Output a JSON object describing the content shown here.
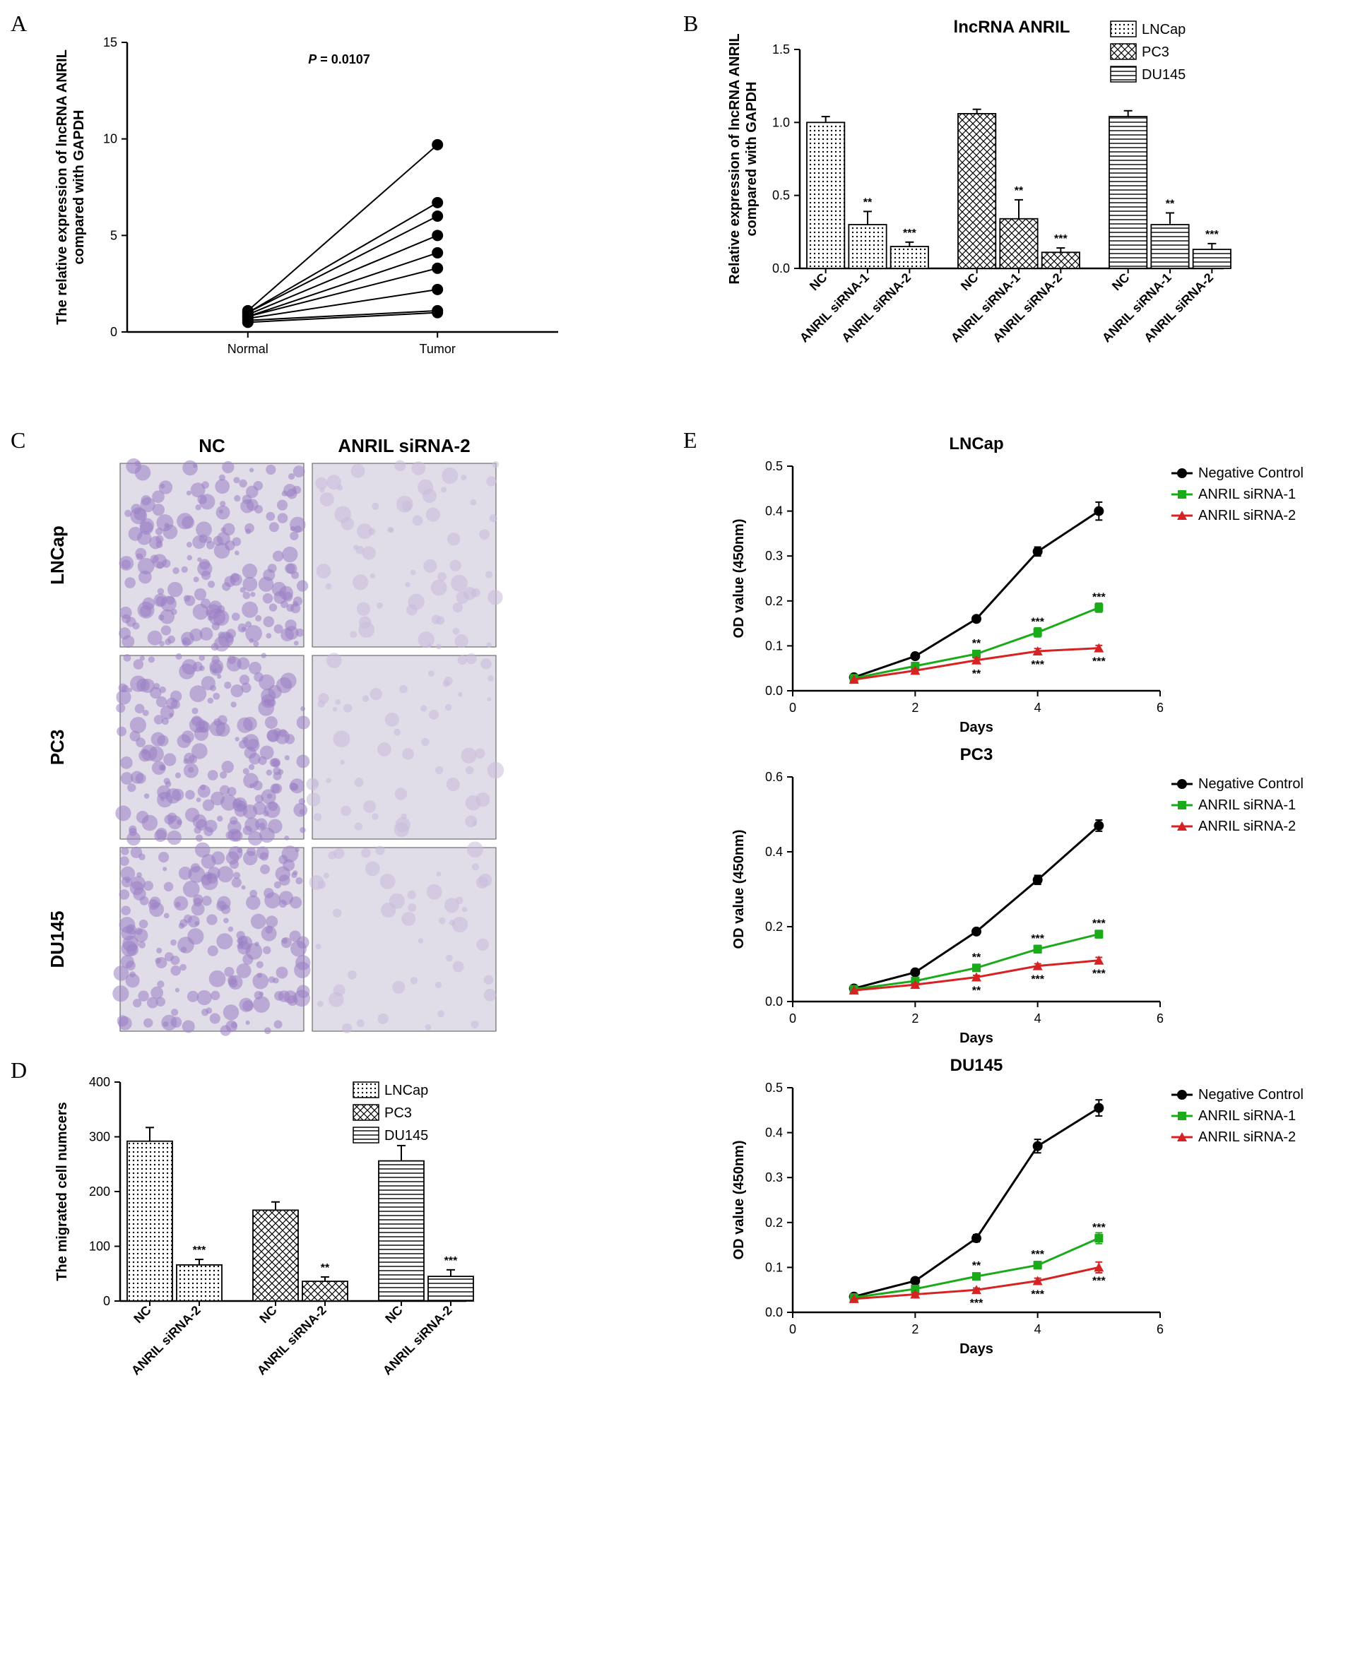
{
  "panelA": {
    "label": "A",
    "type": "paired-scatter",
    "title_p": "P = 0.0107",
    "ylabel": "The relative expression of lncRNA ANRIL\ncompared with GAPDH",
    "x_categories": [
      "Normal",
      "Tumor"
    ],
    "ylim": [
      0,
      15
    ],
    "yticks": [
      0,
      5,
      10,
      15
    ],
    "lines": [
      {
        "normal": 0.5,
        "tumor": 1.0
      },
      {
        "normal": 0.6,
        "tumor": 1.1
      },
      {
        "normal": 0.7,
        "tumor": 2.2
      },
      {
        "normal": 0.8,
        "tumor": 3.3
      },
      {
        "normal": 0.8,
        "tumor": 4.1
      },
      {
        "normal": 0.9,
        "tumor": 5.0
      },
      {
        "normal": 1.0,
        "tumor": 6.0
      },
      {
        "normal": 1.0,
        "tumor": 6.7
      },
      {
        "normal": 1.1,
        "tumor": 9.7
      }
    ],
    "marker_color": "#000000",
    "marker_size": 8,
    "line_color": "#000000",
    "background_color": "#ffffff",
    "title_fontsize": 22,
    "label_fontsize": 20
  },
  "panelB": {
    "label": "B",
    "type": "bar",
    "title": "lncRNA ANRIL",
    "ylabel": "Relative expression of lncRNA ANRIL\ncompared with GAPDH",
    "ylim": [
      0,
      1.5
    ],
    "yticks": [
      0.0,
      0.5,
      1.0,
      1.5
    ],
    "legend": [
      {
        "name": "LNCap",
        "pattern": "dots"
      },
      {
        "name": "PC3",
        "pattern": "crosshatch"
      },
      {
        "name": "DU145",
        "pattern": "hlines"
      }
    ],
    "groups": [
      {
        "pattern": "dots",
        "bars": [
          {
            "label": "NC",
            "value": 1.0,
            "err": 0.04,
            "sig": ""
          },
          {
            "label": "ANRIL siRNA-1",
            "value": 0.3,
            "err": 0.09,
            "sig": "**"
          },
          {
            "label": "ANRIL siRNA-2",
            "value": 0.15,
            "err": 0.03,
            "sig": "***"
          }
        ]
      },
      {
        "pattern": "crosshatch",
        "bars": [
          {
            "label": "NC",
            "value": 1.06,
            "err": 0.03,
            "sig": ""
          },
          {
            "label": "ANRIL siRNA-1",
            "value": 0.34,
            "err": 0.13,
            "sig": "**"
          },
          {
            "label": "ANRIL siRNA-2",
            "value": 0.11,
            "err": 0.03,
            "sig": "***"
          }
        ]
      },
      {
        "pattern": "hlines",
        "bars": [
          {
            "label": "NC",
            "value": 1.04,
            "err": 0.04,
            "sig": ""
          },
          {
            "label": "ANRIL siRNA-1",
            "value": 0.3,
            "err": 0.08,
            "sig": "**"
          },
          {
            "label": "ANRIL siRNA-2",
            "value": 0.13,
            "err": 0.04,
            "sig": "***"
          }
        ]
      }
    ],
    "bar_fill": "#ffffff",
    "bar_stroke": "#000000",
    "background_color": "#ffffff",
    "label_fontsize": 20,
    "title_fontsize": 24
  },
  "panelC": {
    "label": "C",
    "type": "image-grid",
    "col_headers": [
      "NC",
      "ANRIL siRNA-2"
    ],
    "row_headers": [
      "LNCap",
      "PC3",
      "DU145"
    ],
    "cell_color_dense": "#9a7fc4",
    "cell_color_sparse": "#c9bcdb",
    "cell_bg": "#e0dce8",
    "cells": [
      [
        {
          "density": 0.75
        },
        {
          "density": 0.25
        }
      ],
      [
        {
          "density": 0.8
        },
        {
          "density": 0.2
        }
      ],
      [
        {
          "density": 0.7
        },
        {
          "density": 0.18
        }
      ]
    ]
  },
  "panelD": {
    "label": "D",
    "type": "bar",
    "ylabel": "The migrated cell numcers",
    "ylim": [
      0,
      400
    ],
    "yticks": [
      0,
      100,
      200,
      300,
      400
    ],
    "legend": [
      {
        "name": "LNCap",
        "pattern": "dots"
      },
      {
        "name": "PC3",
        "pattern": "crosshatch"
      },
      {
        "name": "DU145",
        "pattern": "hlines"
      }
    ],
    "groups": [
      {
        "pattern": "dots",
        "bars": [
          {
            "label": "NC",
            "value": 292,
            "err": 25,
            "sig": ""
          },
          {
            "label": "ANRIL siRNA-2",
            "value": 66,
            "err": 10,
            "sig": "***"
          }
        ]
      },
      {
        "pattern": "crosshatch",
        "bars": [
          {
            "label": "NC",
            "value": 166,
            "err": 15,
            "sig": ""
          },
          {
            "label": "ANRIL siRNA-2",
            "value": 36,
            "err": 8,
            "sig": "**"
          }
        ]
      },
      {
        "pattern": "hlines",
        "bars": [
          {
            "label": "NC",
            "value": 256,
            "err": 28,
            "sig": ""
          },
          {
            "label": "ANRIL siRNA-2",
            "value": 45,
            "err": 12,
            "sig": "***"
          }
        ]
      }
    ],
    "bar_fill": "#ffffff",
    "bar_stroke": "#000000",
    "background_color": "#ffffff",
    "label_fontsize": 20
  },
  "panelE": {
    "label": "E",
    "type": "line-multi",
    "xlabel": "Days",
    "ylabel": "OD value (450nm)",
    "xlim": [
      0,
      6
    ],
    "xticks": [
      0,
      2,
      4,
      6
    ],
    "legend": [
      {
        "name": "Negative Control",
        "color": "#000000",
        "marker": "circle"
      },
      {
        "name": "ANRIL siRNA-1",
        "color": "#1aaa1a",
        "marker": "square"
      },
      {
        "name": "ANRIL siRNA-2",
        "color": "#d62222",
        "marker": "triangle"
      }
    ],
    "charts": [
      {
        "title": "LNCap",
        "ylim": [
          0,
          0.5
        ],
        "yticks": [
          0.0,
          0.1,
          0.2,
          0.3,
          0.4,
          0.5
        ],
        "series": [
          {
            "key": "Negative Control",
            "points": [
              [
                1,
                0.03
              ],
              [
                2,
                0.077
              ],
              [
                3,
                0.16
              ],
              [
                4,
                0.31
              ],
              [
                5,
                0.4
              ]
            ],
            "err": [
              0,
              0.005,
              0.005,
              0.01,
              0.02
            ]
          },
          {
            "key": "ANRIL siRNA-1",
            "points": [
              [
                1,
                0.028
              ],
              [
                2,
                0.055
              ],
              [
                3,
                0.082
              ],
              [
                4,
                0.13
              ],
              [
                5,
                0.185
              ]
            ],
            "err": [
              0,
              0.004,
              0.006,
              0.01,
              0.01
            ],
            "sig": [
              "",
              "",
              "**",
              "***",
              "***"
            ]
          },
          {
            "key": "ANRIL siRNA-2",
            "points": [
              [
                1,
                0.025
              ],
              [
                2,
                0.045
              ],
              [
                3,
                0.068
              ],
              [
                4,
                0.088
              ],
              [
                5,
                0.095
              ]
            ],
            "err": [
              0,
              0.003,
              0.005,
              0.006,
              0.006
            ],
            "sig": [
              "",
              "",
              "**",
              "***",
              "***"
            ]
          }
        ]
      },
      {
        "title": "PC3",
        "ylim": [
          0,
          0.6
        ],
        "yticks": [
          0.0,
          0.2,
          0.4,
          0.6
        ],
        "series": [
          {
            "key": "Negative Control",
            "points": [
              [
                1,
                0.035
              ],
              [
                2,
                0.078
              ],
              [
                3,
                0.187
              ],
              [
                4,
                0.325
              ],
              [
                5,
                0.47
              ]
            ],
            "err": [
              0,
              0.005,
              0.008,
              0.012,
              0.015
            ]
          },
          {
            "key": "ANRIL siRNA-1",
            "points": [
              [
                1,
                0.033
              ],
              [
                2,
                0.055
              ],
              [
                3,
                0.09
              ],
              [
                4,
                0.14
              ],
              [
                5,
                0.18
              ]
            ],
            "err": [
              0,
              0.004,
              0.006,
              0.01,
              0.01
            ],
            "sig": [
              "",
              "",
              "**",
              "***",
              "***"
            ]
          },
          {
            "key": "ANRIL siRNA-2",
            "points": [
              [
                1,
                0.03
              ],
              [
                2,
                0.045
              ],
              [
                3,
                0.065
              ],
              [
                4,
                0.095
              ],
              [
                5,
                0.11
              ]
            ],
            "err": [
              0,
              0.003,
              0.005,
              0.006,
              0.008
            ],
            "sig": [
              "",
              "",
              "**",
              "***",
              "***"
            ]
          }
        ]
      },
      {
        "title": "DU145",
        "ylim": [
          0,
          0.5
        ],
        "yticks": [
          0.0,
          0.1,
          0.2,
          0.3,
          0.4,
          0.5
        ],
        "series": [
          {
            "key": "Negative Control",
            "points": [
              [
                1,
                0.035
              ],
              [
                2,
                0.07
              ],
              [
                3,
                0.165
              ],
              [
                4,
                0.37
              ],
              [
                5,
                0.455
              ]
            ],
            "err": [
              0,
              0.005,
              0.008,
              0.015,
              0.018
            ]
          },
          {
            "key": "ANRIL siRNA-1",
            "points": [
              [
                1,
                0.033
              ],
              [
                2,
                0.052
              ],
              [
                3,
                0.08
              ],
              [
                4,
                0.105
              ],
              [
                5,
                0.165
              ]
            ],
            "err": [
              0,
              0.004,
              0.006,
              0.008,
              0.012
            ],
            "sig": [
              "",
              "",
              "**",
              "***",
              "***"
            ]
          },
          {
            "key": "ANRIL siRNA-2",
            "points": [
              [
                1,
                0.03
              ],
              [
                2,
                0.04
              ],
              [
                3,
                0.05
              ],
              [
                4,
                0.07
              ],
              [
                5,
                0.1
              ]
            ],
            "err": [
              0,
              0.003,
              0.004,
              0.006,
              0.012
            ],
            "sig": [
              "",
              "",
              "***",
              "***",
              "***"
            ]
          }
        ]
      }
    ],
    "background_color": "#ffffff",
    "label_fontsize": 20
  },
  "patterns": {
    "dots": {
      "size": 6,
      "fill": "#ffffff",
      "stroke": "#000000"
    },
    "crosshatch": {
      "size": 10,
      "fill": "#ffffff",
      "stroke": "#000000"
    },
    "hlines": {
      "size": 6,
      "fill": "#ffffff",
      "stroke": "#000000"
    }
  }
}
